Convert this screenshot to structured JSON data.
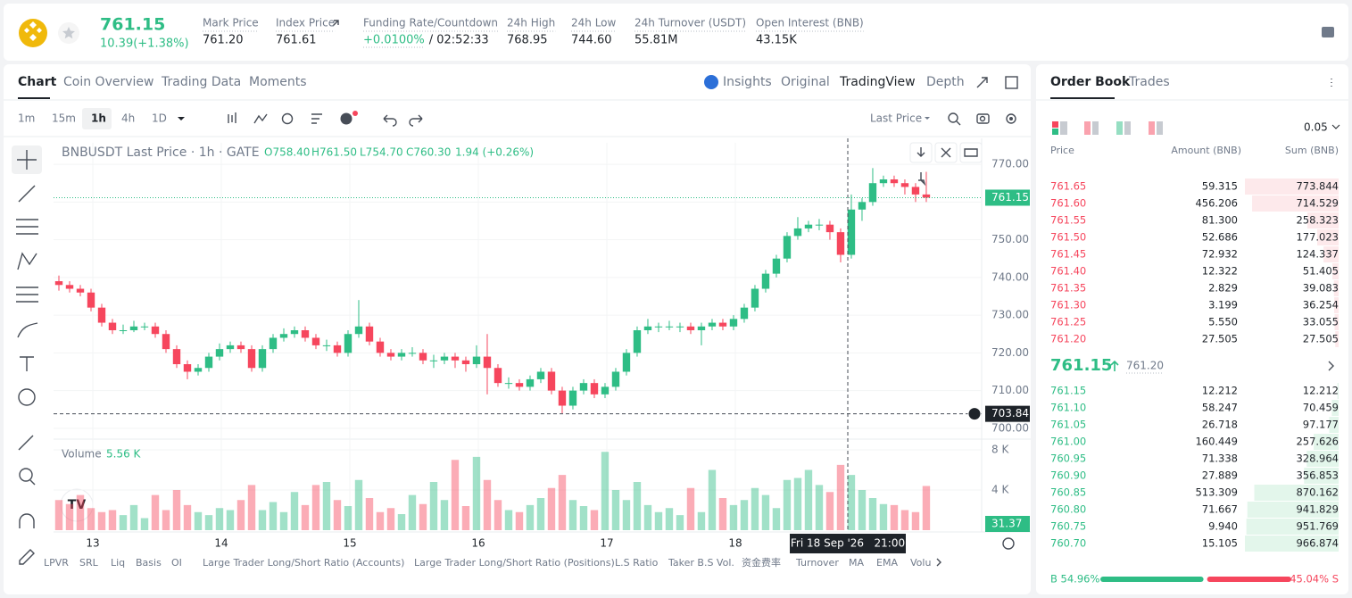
{
  "header": {
    "price": "761.15",
    "change": "10.39(+1.38%)",
    "stats": [
      {
        "label": "Mark Price",
        "value": "761.20"
      },
      {
        "label": "Index Price",
        "value": "761.61"
      },
      {
        "label": "Funding Rate/Countdown",
        "rate": "+0.0100%",
        "countdown": "/ 02:52:33"
      },
      {
        "label": "24h High",
        "value": "768.95"
      },
      {
        "label": "24h Low",
        "value": "744.60"
      },
      {
        "label": "24h Turnover (USDT)",
        "value": "55.81M"
      },
      {
        "label": "Open Interest (BNB)",
        "value": "43.15K"
      }
    ]
  },
  "chart_tabs": [
    "Chart",
    "Coin Overview",
    "Trading Data",
    "Moments"
  ],
  "view_tabs": [
    "Insights",
    "Original",
    "TradingView",
    "Depth"
  ],
  "intervals": [
    "1m",
    "15m",
    "1h",
    "4h",
    "1D"
  ],
  "price_source": "Last Price",
  "chart": {
    "type": "candlestick",
    "legend": {
      "title": "BNBUSDT Last Price · 1h · GATE",
      "open": "O758.40",
      "high": "H761.50",
      "low": "L754.70",
      "close": "C760.30",
      "change": "1.94 (+0.26%)"
    },
    "up_color": "#2ebd85",
    "down_color": "#f6465d",
    "open": [
      739,
      738,
      737,
      736,
      732,
      728,
      726,
      726,
      727,
      727,
      725,
      721,
      717,
      715,
      716,
      719,
      721,
      722,
      721,
      716,
      721,
      724,
      725,
      726,
      724,
      722,
      722,
      720,
      725,
      727,
      723,
      720,
      719,
      720,
      720,
      718,
      718,
      719,
      718,
      717,
      719,
      716,
      712,
      712,
      711,
      713,
      715,
      710,
      706,
      710,
      712,
      709,
      711,
      715,
      720,
      726,
      727,
      727,
      727,
      727,
      726,
      727,
      728,
      727,
      729,
      732,
      737,
      741,
      745,
      751,
      753,
      754,
      754,
      752,
      746,
      758,
      760,
      765,
      766,
      765,
      764,
      762
    ],
    "high": [
      740.5,
      739,
      738,
      737,
      733,
      729,
      727.5,
      728.5,
      728,
      728,
      726,
      722,
      718,
      717,
      720,
      722.5,
      723,
      723,
      722,
      722,
      725,
      726.5,
      727,
      727,
      725,
      723.5,
      723,
      726,
      734,
      728,
      724,
      721,
      721,
      721.5,
      721,
      719.5,
      720,
      720,
      719,
      722,
      725,
      717,
      713.5,
      713,
      714,
      716,
      716,
      711,
      711,
      713,
      713,
      712,
      716,
      721,
      727,
      729,
      728,
      728.5,
      728,
      728,
      728,
      729,
      729,
      730,
      733,
      738,
      742,
      746,
      752,
      756,
      755,
      755.5,
      755,
      753,
      762,
      761,
      769,
      767,
      767,
      766,
      765,
      768
    ],
    "low": [
      736.5,
      736,
      735,
      731,
      727,
      725,
      725,
      725.5,
      726,
      724,
      720,
      716,
      713,
      714,
      715,
      718,
      720,
      720,
      715,
      715,
      720,
      723,
      724,
      723,
      721,
      720.5,
      719,
      719,
      724,
      722,
      719,
      718,
      718,
      719,
      717,
      716,
      717,
      716,
      715,
      716,
      709,
      711,
      710.5,
      710,
      710,
      712,
      709,
      704,
      705,
      709,
      708,
      708,
      710,
      714,
      719,
      725,
      725.5,
      726,
      725.5,
      725,
      722,
      726,
      726,
      726,
      728,
      731,
      736,
      740,
      744,
      750,
      752,
      752.5,
      750,
      744,
      745,
      755,
      759,
      764,
      764,
      762,
      760,
      760
    ],
    "close": [
      738,
      737,
      736,
      732,
      728,
      726,
      726,
      727,
      727,
      725,
      721,
      717,
      715,
      716,
      719,
      721,
      722,
      721,
      716,
      721,
      724,
      725,
      726,
      724,
      722,
      722,
      720,
      725,
      727,
      723,
      720,
      719,
      720,
      720,
      718,
      718,
      719,
      718,
      717,
      719,
      716,
      712,
      712,
      711,
      713,
      715,
      710,
      706,
      710,
      712,
      709,
      711,
      715,
      720,
      726,
      727,
      727,
      727,
      727,
      726,
      727,
      728,
      727,
      729,
      732,
      737,
      741,
      745,
      751,
      753,
      754,
      754,
      752,
      746,
      758,
      760,
      765,
      766,
      765,
      764,
      762,
      761.15
    ],
    "xlim": [
      -0.5,
      86.17
    ],
    "xticks": [
      {
        "value": 3.17,
        "label": "13"
      },
      {
        "value": 15.17,
        "label": "14"
      },
      {
        "value": 27.17,
        "label": "15"
      },
      {
        "value": 39.17,
        "label": "16"
      },
      {
        "value": 51.17,
        "label": "17"
      },
      {
        "value": 63.17,
        "label": "18"
      }
    ],
    "ylim": [
      697.6,
      775.7
    ],
    "yticks": [
      {
        "value": 700,
        "label": "700.00"
      },
      {
        "value": 710,
        "label": "710.00"
      },
      {
        "value": 720,
        "label": "720.00"
      },
      {
        "value": 730,
        "label": "730.00"
      },
      {
        "value": 740,
        "label": "740.00"
      },
      {
        "value": 750,
        "label": "750.00"
      },
      {
        "value": 760,
        "label": "760.00"
      },
      {
        "value": 770,
        "label": "770.00"
      }
    ],
    "last_price": 761.15,
    "low_line": 703.84,
    "crosshair": {
      "x": 73.67,
      "label": "Fri 18 Sep '26   21:00"
    },
    "volume": {
      "name": "Volume",
      "current": "5.56 K",
      "axis_label": "31.37",
      "ylim": [
        0,
        8889
      ],
      "yticks": [
        {
          "value": 4000,
          "label": "4 K"
        },
        {
          "value": 8000,
          "label": "8 K"
        }
      ],
      "values": [
        3000,
        2600,
        3500,
        2200,
        1800,
        2000,
        1500,
        2500,
        1200,
        3500,
        2000,
        4000,
        2500,
        1800,
        1500,
        2200,
        2000,
        3000,
        4500,
        2000,
        2800,
        1800,
        3800,
        2500,
        4500,
        4800,
        3000,
        2400,
        5000,
        3200,
        1800,
        2200,
        1600,
        3500,
        2600,
        4800,
        3000,
        7000,
        2400,
        7300,
        5000,
        3000,
        2000,
        1800,
        2500,
        3200,
        4200,
        5500,
        3000,
        2400,
        2000,
        7800,
        4000,
        3000,
        4800,
        2500,
        1800,
        2200,
        1500,
        4200,
        1800,
        6000,
        3200,
        2500,
        3000,
        4200,
        3500,
        2200,
        5000,
        5200,
        6000,
        4500,
        3800,
        6500,
        5500,
        4000,
        3200,
        2600,
        2500,
        2000,
        1800,
        4400
      ]
    }
  },
  "indicators": [
    "LPVR",
    "SRL",
    "Liq",
    "Basis",
    "OI",
    "Large Trader Long/Short Ratio (Accounts)",
    "Large Trader Long/Short Ratio (Positions)",
    "L.S Ratio",
    "Taker B.S Vol.",
    "资金费率",
    "Turnover",
    "MA",
    "EMA",
    "Volu"
  ],
  "order_book": {
    "tabs": [
      "Order Book",
      "Trades"
    ],
    "precision": "0.05",
    "columns": [
      "Price",
      "Amount (BNB)",
      "Sum (BNB)"
    ],
    "asks": [
      {
        "price": "761.65",
        "amount": "59.315",
        "sum": 773.844
      },
      {
        "price": "761.60",
        "amount": "456.206",
        "sum": 714.529
      },
      {
        "price": "761.55",
        "amount": "81.300",
        "sum": 258.323
      },
      {
        "price": "761.50",
        "amount": "52.686",
        "sum": 177.023
      },
      {
        "price": "761.45",
        "amount": "72.932",
        "sum": 124.337
      },
      {
        "price": "761.40",
        "amount": "12.322",
        "sum": 51.405
      },
      {
        "price": "761.35",
        "amount": "2.829",
        "sum": 39.083
      },
      {
        "price": "761.30",
        "amount": "3.199",
        "sum": 36.254
      },
      {
        "price": "761.25",
        "amount": "5.550",
        "sum": 33.055
      },
      {
        "price": "761.20",
        "amount": "27.505",
        "sum": 27.505
      }
    ],
    "mid_price": "761.15",
    "mark_price": "761.20",
    "bids": [
      {
        "price": "761.15",
        "amount": "12.212",
        "sum": 12.212
      },
      {
        "price": "761.10",
        "amount": "58.247",
        "sum": 70.459
      },
      {
        "price": "761.05",
        "amount": "26.718",
        "sum": 97.177
      },
      {
        "price": "761.00",
        "amount": "160.449",
        "sum": 257.626
      },
      {
        "price": "760.95",
        "amount": "71.338",
        "sum": 328.964
      },
      {
        "price": "760.90",
        "amount": "27.889",
        "sum": 356.853
      },
      {
        "price": "760.85",
        "amount": "513.309",
        "sum": 870.162
      },
      {
        "price": "760.80",
        "amount": "71.667",
        "sum": 941.829
      },
      {
        "price": "760.75",
        "amount": "9.940",
        "sum": 951.769
      },
      {
        "price": "760.70",
        "amount": "15.105",
        "sum": 966.874
      }
    ],
    "buy": {
      "value": 54.96,
      "label": "B 54.96%"
    },
    "sell": {
      "value": 45.04,
      "label": "45.04% S"
    }
  }
}
